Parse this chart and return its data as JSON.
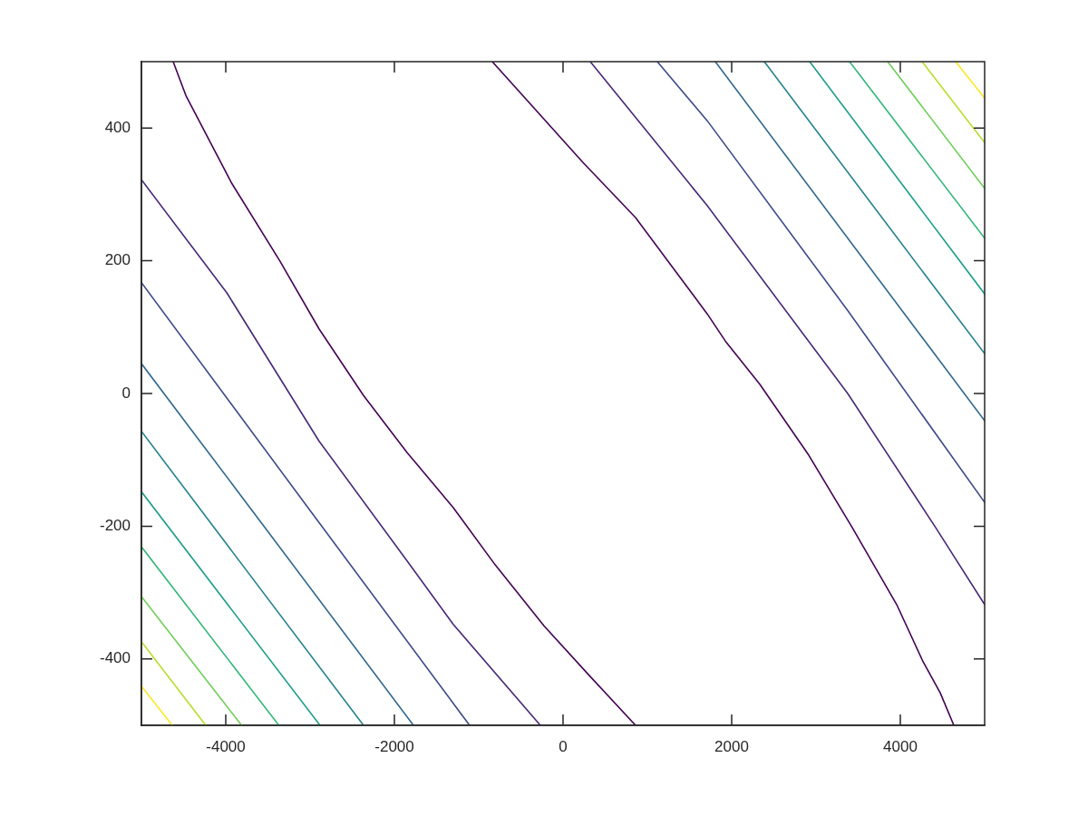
{
  "chart_data": {
    "type": "line",
    "marker": "none",
    "line_style": "solid",
    "legend": false,
    "xlim": [
      -5000,
      5000
    ],
    "ylim": [
      -500,
      500
    ],
    "xticks": [
      -4000,
      -2000,
      0,
      2000,
      4000
    ],
    "yticks": [
      -400,
      -200,
      0,
      200,
      400
    ],
    "series": [
      {
        "color": "#440154",
        "x": [
          -4624,
          -4473,
          -3935,
          -3355,
          -2892,
          -2366,
          -1849,
          -1301,
          -806,
          -226,
          312,
          860
        ],
        "values": [
          500,
          449,
          318,
          199,
          97,
          -3,
          -89,
          -172,
          -258,
          -350,
          -425,
          -500
        ]
      },
      {
        "color": "#440154",
        "x": [
          -839,
          237,
          860,
          1710,
          1925,
          2333,
          2914,
          3430,
          3957,
          4269,
          4473,
          4635
        ],
        "values": [
          500,
          348,
          265,
          120,
          79,
          14,
          -93,
          -202,
          -318,
          -404,
          -451,
          -500
        ]
      },
      {
        "color": "#482878",
        "x": [
          -5000,
          -3989,
          -2892,
          -1839,
          -1301,
          -269
        ],
        "values": [
          322,
          152,
          -72,
          -254,
          -348,
          -500
        ]
      },
      {
        "color": "#482878",
        "x": [
          323,
          1710,
          3376,
          4419,
          5000
        ],
        "values": [
          500,
          283,
          0,
          -202,
          -318
        ]
      },
      {
        "color": "#3e4989",
        "x": [
          -5000,
          -3054,
          -1108
        ],
        "values": [
          167,
          -167,
          -500
        ]
      },
      {
        "color": "#3e4989",
        "x": [
          1118,
          1710,
          3376,
          5000
        ],
        "values": [
          500,
          411,
          125,
          -164
        ]
      },
      {
        "color": "#31688e",
        "x": [
          -5000,
          -3387,
          -1774
        ],
        "values": [
          45,
          -227,
          -500
        ]
      },
      {
        "color": "#31688e",
        "x": [
          1806,
          5000
        ],
        "values": [
          500,
          -41
        ]
      },
      {
        "color": "#26828e",
        "x": [
          -5000,
          -2366
        ],
        "values": [
          -57,
          -500
        ]
      },
      {
        "color": "#26828e",
        "x": [
          2387,
          5000
        ],
        "values": [
          500,
          60
        ]
      },
      {
        "color": "#1f9e89",
        "x": [
          -5000,
          -2882
        ],
        "values": [
          -148,
          -500
        ]
      },
      {
        "color": "#1f9e89",
        "x": [
          2925,
          5000
        ],
        "values": [
          500,
          150
        ]
      },
      {
        "color": "#35b779",
        "x": [
          -5000,
          -3370
        ],
        "values": [
          -231,
          -500
        ]
      },
      {
        "color": "#35b779",
        "x": [
          3398,
          5000
        ],
        "values": [
          500,
          234
        ]
      },
      {
        "color": "#6ece58",
        "x": [
          -5000,
          -3812
        ],
        "values": [
          -306,
          -500
        ]
      },
      {
        "color": "#6ece58",
        "x": [
          3850,
          5000
        ],
        "values": [
          500,
          309
        ]
      },
      {
        "color": "#b5de2b",
        "x": [
          -5000,
          -4237
        ],
        "values": [
          -374,
          -500
        ]
      },
      {
        "color": "#b5de2b",
        "x": [
          4258,
          5000
        ],
        "values": [
          500,
          378
        ]
      },
      {
        "color": "#fde725",
        "x": [
          -5000,
          -4634
        ],
        "values": [
          -441,
          -500
        ]
      },
      {
        "color": "#fde725",
        "x": [
          4656,
          5000
        ],
        "values": [
          500,
          445
        ]
      }
    ]
  }
}
